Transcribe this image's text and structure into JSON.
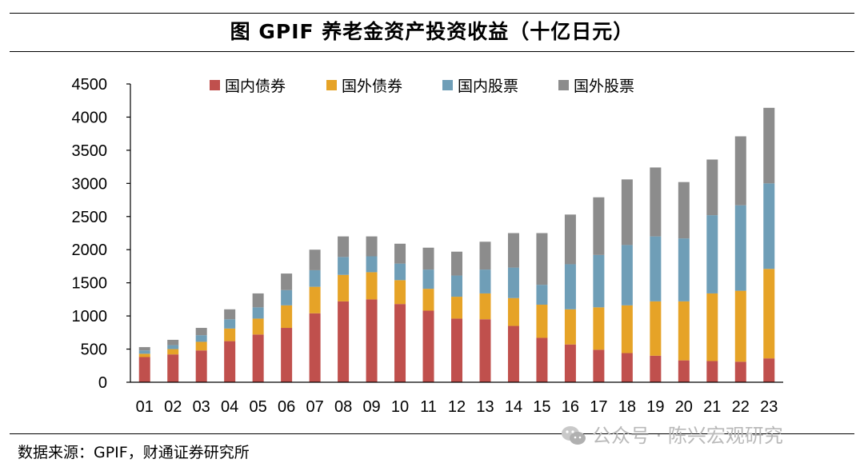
{
  "title": "图  GPIF 养老金资产投资收益（十亿日元）",
  "source_note": "数据来源：GPIF，财通证券研究所",
  "watermark": "公众号 · 陈兴宏观研究",
  "colors": {
    "domestic_bonds": "#c0504d",
    "foreign_bonds": "#e6a327",
    "domestic_equity": "#6f9eb7",
    "foreign_equity": "#8c8c8c"
  },
  "chart_data": {
    "type": "bar",
    "stacked": true,
    "title": "GPIF 养老金资产投资收益（十亿日元）",
    "xlabel": "",
    "ylabel": "",
    "ylim": [
      0,
      4500
    ],
    "yticks": [
      0,
      500,
      1000,
      1500,
      2000,
      2500,
      3000,
      3500,
      4000,
      4500
    ],
    "legend_position": "top",
    "categories": [
      "01",
      "02",
      "03",
      "04",
      "05",
      "06",
      "07",
      "08",
      "09",
      "10",
      "11",
      "12",
      "13",
      "14",
      "15",
      "16",
      "17",
      "18",
      "19",
      "20",
      "21",
      "22",
      "23"
    ],
    "series": [
      {
        "name": "国内债券",
        "color_key": "domestic_bonds",
        "values": [
          380,
          420,
          480,
          620,
          720,
          820,
          1040,
          1220,
          1250,
          1180,
          1080,
          960,
          950,
          850,
          670,
          570,
          490,
          440,
          400,
          330,
          320,
          310,
          360
        ]
      },
      {
        "name": "国外债券",
        "color_key": "foreign_bonds",
        "values": [
          50,
          80,
          130,
          190,
          240,
          340,
          400,
          400,
          410,
          360,
          330,
          330,
          390,
          420,
          500,
          530,
          640,
          720,
          820,
          890,
          1020,
          1070,
          1350
        ]
      },
      {
        "name": "国内股票",
        "color_key": "domestic_equity",
        "values": [
          50,
          60,
          100,
          140,
          170,
          230,
          250,
          270,
          240,
          250,
          290,
          320,
          360,
          460,
          300,
          680,
          790,
          910,
          980,
          950,
          1180,
          1290,
          1290
        ]
      },
      {
        "name": "国外股票",
        "color_key": "foreign_equity",
        "values": [
          50,
          80,
          110,
          150,
          210,
          250,
          310,
          310,
          300,
          300,
          330,
          360,
          420,
          520,
          780,
          750,
          870,
          990,
          1040,
          850,
          840,
          1040,
          1140
        ]
      }
    ]
  }
}
